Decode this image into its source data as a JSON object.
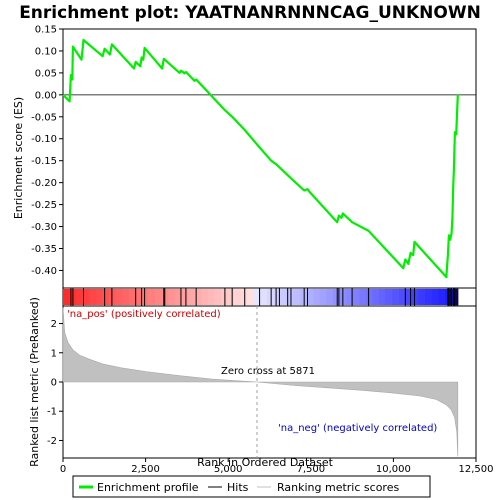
{
  "chart_data": {
    "type": "line",
    "title": "Enrichment plot: YAATNANRNNNCAG_UNKNOWN",
    "xlabel": "Rank in Ordered Dataset",
    "top_ylabel": "Enrichment score (ES)",
    "bottom_ylabel": "Ranked list metric (PreRanked)",
    "xlim": [
      0,
      12500
    ],
    "x_ticks": [
      0,
      2500,
      5000,
      7500,
      10000,
      12500
    ],
    "x_tick_labels": [
      "0",
      "2,500",
      "5,000",
      "7,500",
      "10,000",
      "12,500"
    ],
    "es_ylim": [
      -0.44,
      0.15
    ],
    "es_ticks": [
      0.15,
      0.1,
      0.05,
      0.0,
      -0.05,
      -0.1,
      -0.15,
      -0.2,
      -0.25,
      -0.3,
      -0.35,
      -0.4
    ],
    "es_tick_labels": [
      "0.15",
      "0.10",
      "0.05",
      "0.00",
      "-0.05",
      "-0.10",
      "-0.15",
      "-0.20",
      "-0.25",
      "-0.30",
      "-0.35",
      "-0.40"
    ],
    "metric_ylim": [
      -2.6,
      2.6
    ],
    "metric_ticks": [
      2,
      1,
      0,
      -1,
      -2
    ],
    "metric_tick_labels": [
      "2",
      "1",
      "0",
      "-1",
      "-2"
    ],
    "series": [
      {
        "name": "Enrichment profile",
        "color": "#00ee00",
        "x": [
          0,
          200,
          240,
          280,
          300,
          560,
          620,
          1200,
          1260,
          1420,
          1480,
          2150,
          2200,
          2340,
          2380,
          2430,
          2470,
          3000,
          3050,
          3080,
          3530,
          3570,
          3680,
          3720,
          3980,
          4030,
          4900,
          5120,
          5500,
          5950,
          6300,
          6450,
          6550,
          6800,
          6900,
          7300,
          7400,
          7450,
          8300,
          8350,
          8430,
          8470,
          8750,
          9250,
          10300,
          10360,
          10450,
          10520,
          10600,
          10640,
          11600,
          11650,
          11680,
          11720,
          11760,
          11790,
          11810,
          11830,
          11860,
          11900,
          11950
        ],
        "y": [
          0.0,
          -0.015,
          0.045,
          0.035,
          0.11,
          0.08,
          0.125,
          0.088,
          0.105,
          0.092,
          0.115,
          0.06,
          0.075,
          0.065,
          0.085,
          0.08,
          0.107,
          0.06,
          0.082,
          0.08,
          0.05,
          0.055,
          0.049,
          0.052,
          0.032,
          0.035,
          -0.035,
          -0.05,
          -0.08,
          -0.12,
          -0.15,
          -0.158,
          -0.165,
          -0.183,
          -0.19,
          -0.218,
          -0.215,
          -0.22,
          -0.29,
          -0.275,
          -0.28,
          -0.27,
          -0.29,
          -0.31,
          -0.395,
          -0.375,
          -0.385,
          -0.36,
          -0.365,
          -0.335,
          -0.415,
          -0.365,
          -0.32,
          -0.33,
          -0.315,
          -0.275,
          -0.21,
          -0.17,
          -0.085,
          -0.09,
          0.0
        ]
      }
    ],
    "hits_label": "Hits",
    "hits": [
      240,
      300,
      620,
      1260,
      1480,
      2200,
      2380,
      2470,
      3050,
      3080,
      3570,
      3720,
      4030,
      4900,
      5120,
      5500,
      5950,
      6300,
      6450,
      6550,
      6800,
      6900,
      7300,
      7400,
      8300,
      8350,
      8470,
      8750,
      9250,
      10360,
      10520,
      10640,
      11650,
      11680,
      11720,
      11760,
      11810,
      11830,
      11860,
      11900,
      11950
    ],
    "ranking_label": "Ranking metric scores",
    "ranking_profile": {
      "x": [
        0,
        50,
        150,
        300,
        500,
        800,
        1200,
        1800,
        2500,
        3500,
        4500,
        5871,
        7000,
        8000,
        9000,
        10000,
        10800,
        11300,
        11600,
        11750,
        11850,
        11920,
        11950
      ],
      "y": [
        2.55,
        1.7,
        1.35,
        1.1,
        0.92,
        0.78,
        0.62,
        0.48,
        0.36,
        0.22,
        0.1,
        0.0,
        -0.12,
        -0.2,
        -0.28,
        -0.38,
        -0.48,
        -0.6,
        -0.78,
        -0.95,
        -1.2,
        -1.7,
        -2.55
      ]
    },
    "zero_cross_label": "Zero cross at 5871",
    "zero_cross_x": 5871,
    "pos_label": "'na_pos' (positively correlated)",
    "neg_label": "'na_neg' (negatively correlated)",
    "legend": [
      "Enrichment profile",
      "Hits",
      "Ranking metric scores"
    ],
    "colors": {
      "profile": "#00ee00",
      "hits": "#000000",
      "metric_fill": "#c0c0c0",
      "pos_text": "#cc0000",
      "neg_text": "#0000cc",
      "zero_line": "#a0a0a0"
    }
  }
}
